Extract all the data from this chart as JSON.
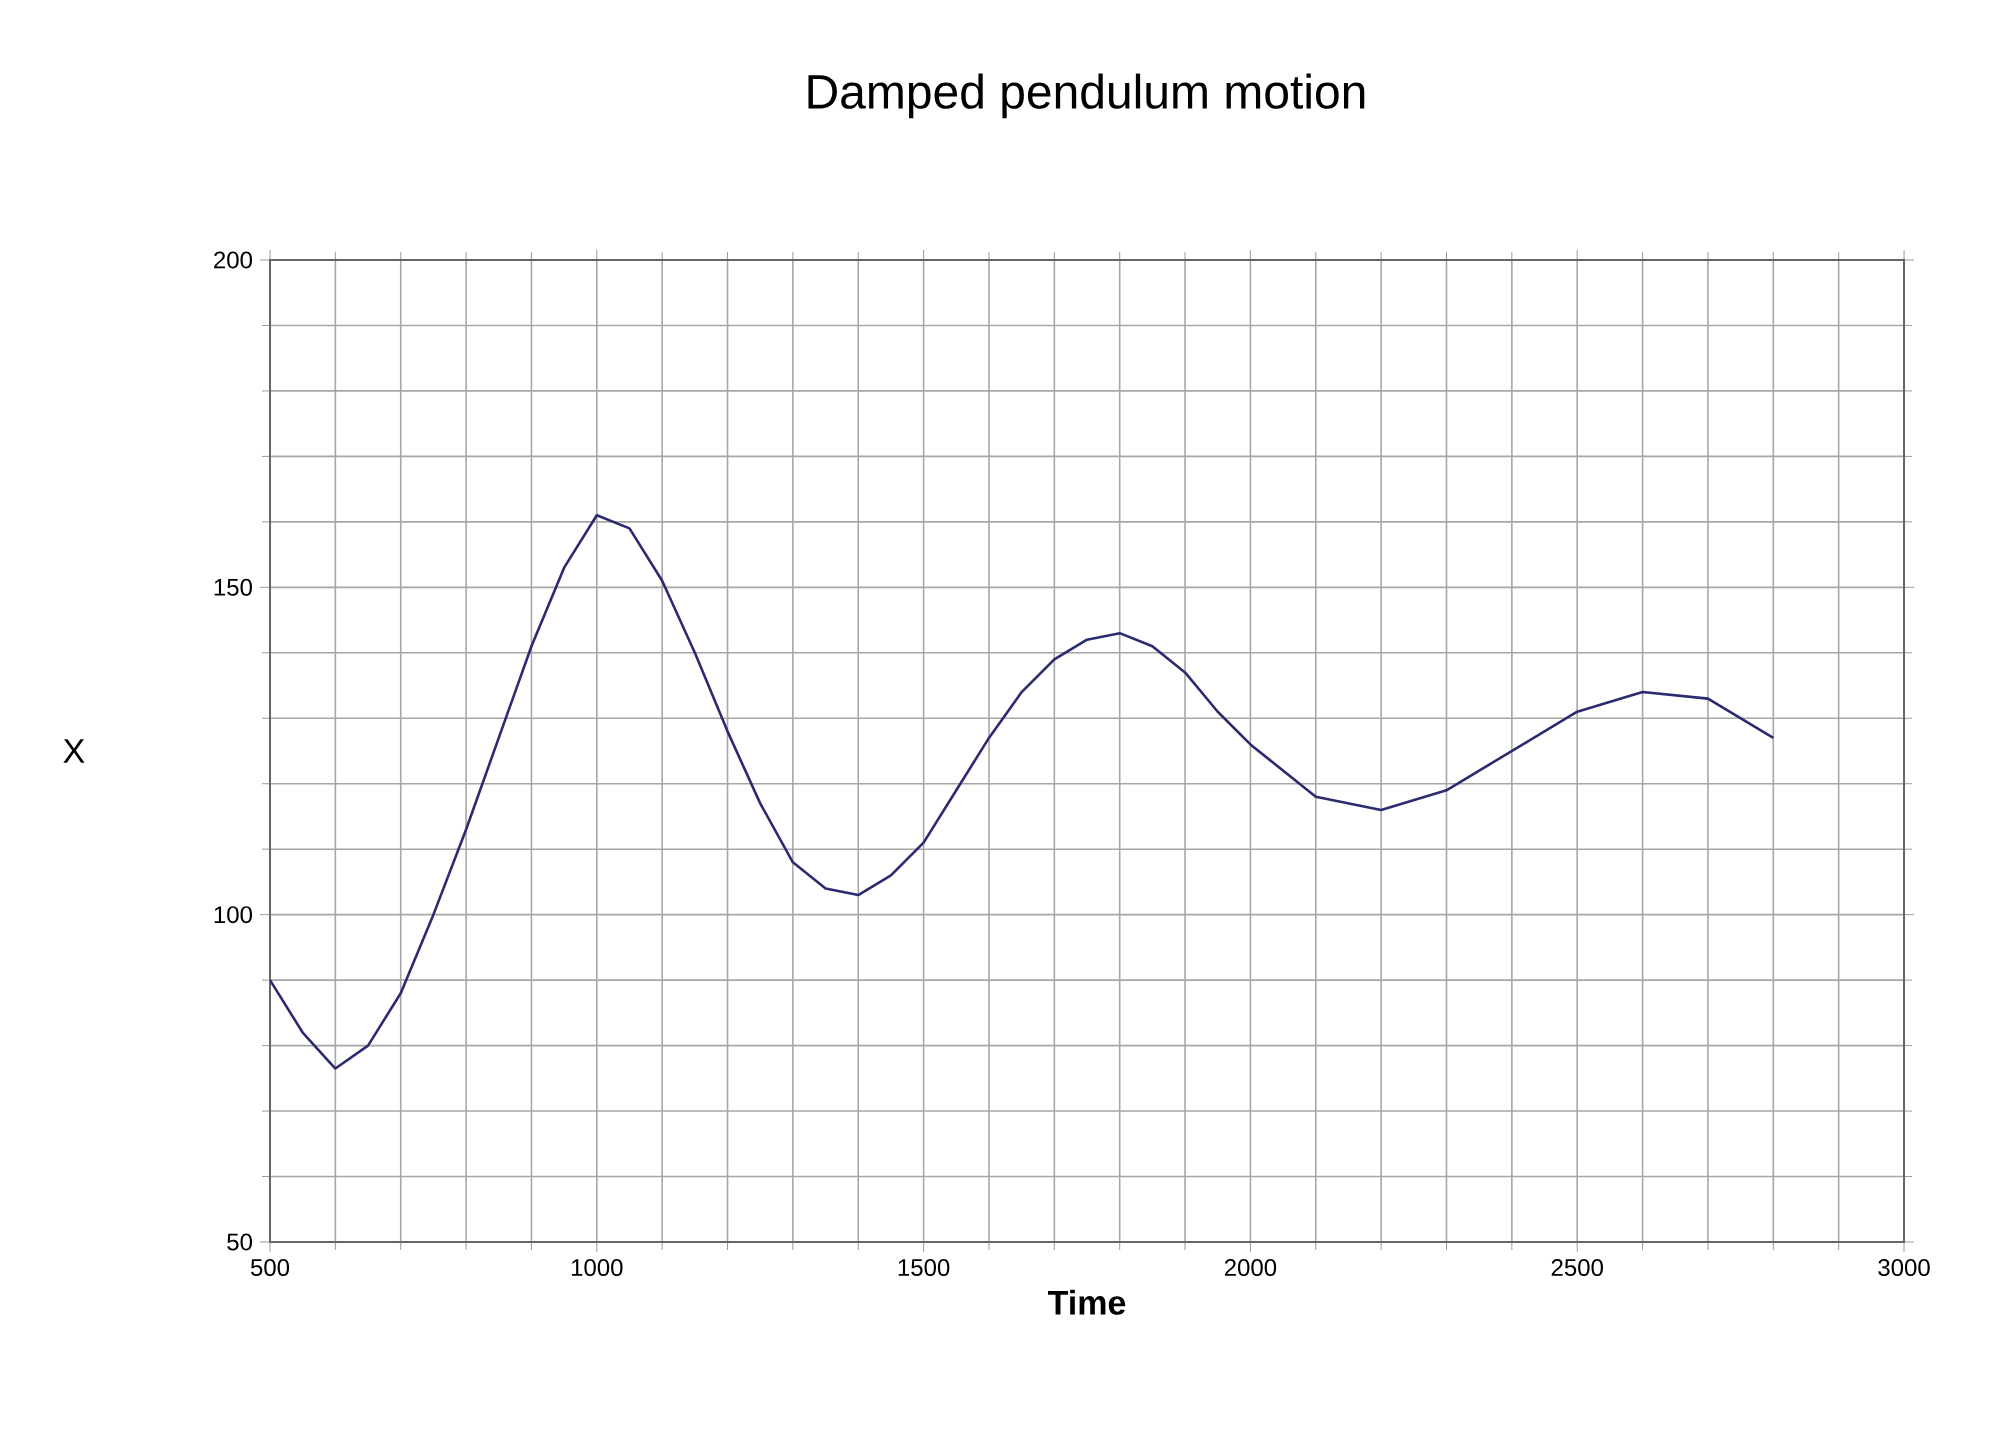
{
  "chart_data": {
    "type": "line",
    "title": "Damped pendulum motion",
    "xlabel": "Time",
    "ylabel": "X",
    "x": [
      500,
      550,
      600,
      650,
      700,
      750,
      800,
      850,
      900,
      950,
      1000,
      1050,
      1100,
      1150,
      1200,
      1250,
      1300,
      1350,
      1400,
      1450,
      1500,
      1550,
      1600,
      1650,
      1700,
      1750,
      1800,
      1850,
      1900,
      1950,
      2000,
      2100,
      2200,
      2300,
      2400,
      2500,
      2600,
      2700,
      2800
    ],
    "values": [
      90,
      82,
      76.5,
      80,
      88,
      100,
      113,
      127,
      141,
      153,
      161,
      159,
      151,
      140,
      128,
      117,
      108,
      104,
      103,
      106,
      111,
      119,
      127,
      134,
      139,
      142,
      143,
      141,
      137,
      131,
      126,
      118,
      116,
      119,
      125,
      131,
      134,
      133,
      127
    ],
    "color": "#2b2b70",
    "xlim": [
      500,
      3000
    ],
    "ylim": [
      50,
      200
    ],
    "xticks": [
      500,
      1000,
      1500,
      2000,
      2500,
      3000
    ],
    "yticks": [
      50,
      100,
      150,
      200
    ],
    "grid": true
  }
}
